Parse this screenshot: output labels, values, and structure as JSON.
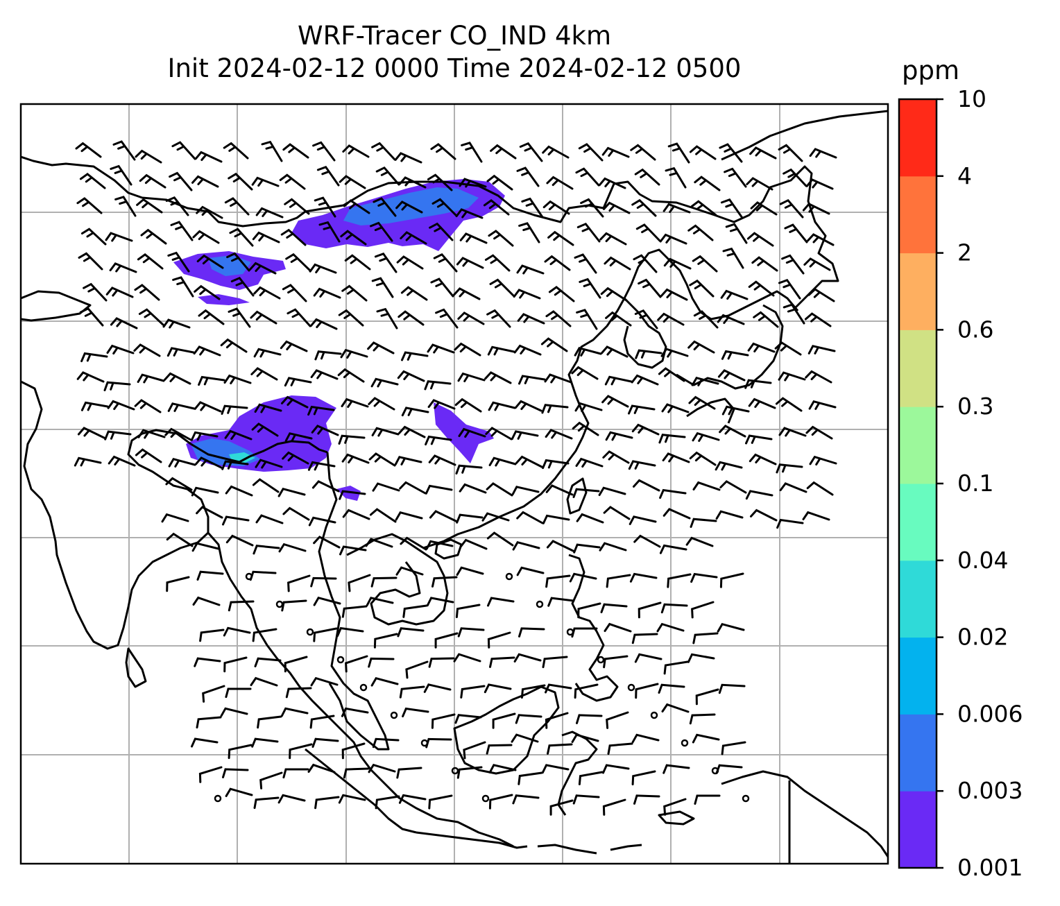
{
  "title": {
    "line1": "WRF-Tracer CO_IND 4km",
    "line2": "Init 2024-02-12 0000 Time 2024-02-12 0500"
  },
  "colorbar": {
    "unit": "ppm",
    "levels": [
      "0.001",
      "0.003",
      "0.006",
      "0.02",
      "0.04",
      "0.1",
      "0.3",
      "0.6",
      "2",
      "4",
      "10"
    ],
    "colors": [
      "#6a2af5",
      "#3575f0",
      "#03b2ee",
      "#2fdad8",
      "#68fbbf",
      "#9cf89b",
      "#d0e184",
      "#feaf60",
      "#ff733b",
      "#ff2a18"
    ]
  },
  "map": {
    "plume_colors": {
      "low": "#6a2af5",
      "mid": "#3575f0",
      "high": "#2fdad8"
    },
    "gridline_color": "#b0b0b0",
    "coastline_color": "#000000"
  }
}
